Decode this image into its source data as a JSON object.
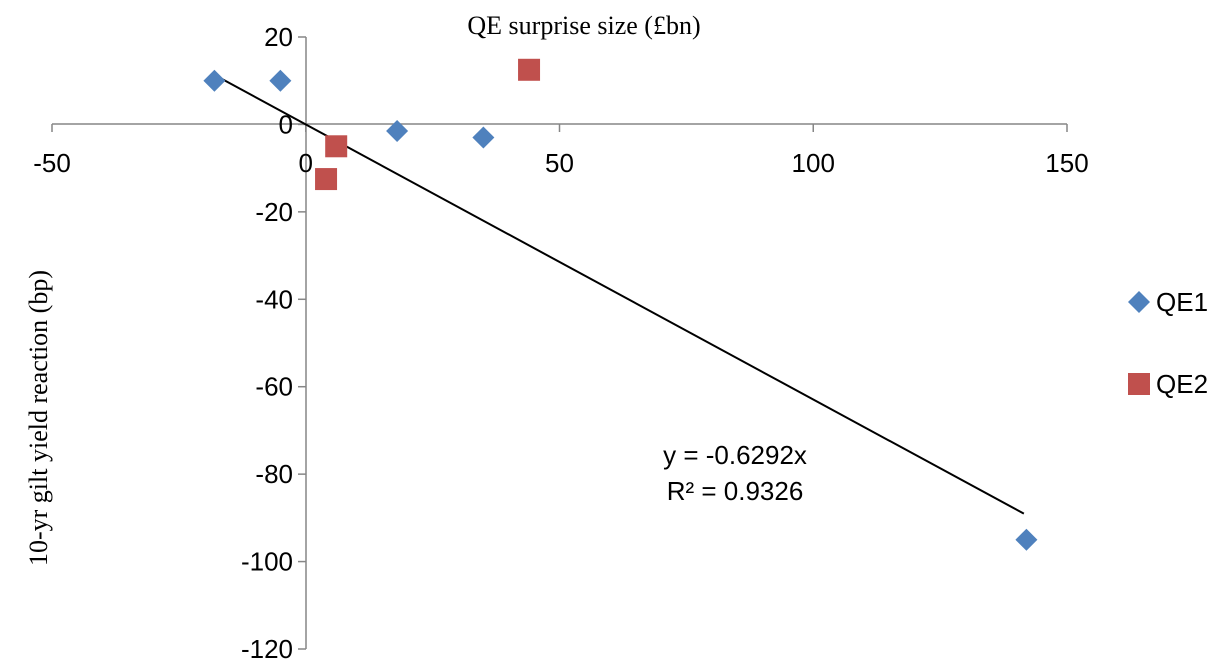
{
  "chart_data": {
    "type": "scatter",
    "title": "QE surprise size (£bn)",
    "xlabel": "",
    "ylabel": "10-yr gilt yield reaction (bp)",
    "xlim": [
      -50,
      150
    ],
    "ylim": [
      -120,
      20
    ],
    "xticks": [
      -50,
      0,
      50,
      100,
      150
    ],
    "yticks": [
      20,
      0,
      -20,
      -40,
      -60,
      -80,
      -100,
      -120
    ],
    "grid": false,
    "legend": "right",
    "series": [
      {
        "name": "QE1",
        "marker": "diamond",
        "color": "#4F81BD",
        "points": [
          {
            "x": -18,
            "y": 10
          },
          {
            "x": -5,
            "y": 10
          },
          {
            "x": 18,
            "y": -1.5
          },
          {
            "x": 35,
            "y": -3
          },
          {
            "x": 142,
            "y": -95
          }
        ]
      },
      {
        "name": "QE2",
        "marker": "square",
        "color": "#C0504D",
        "points": [
          {
            "x": 6,
            "y": -5
          },
          {
            "x": 4,
            "y": -12.5
          },
          {
            "x": 44,
            "y": 12.5
          }
        ]
      }
    ],
    "trendline": {
      "slope": -0.6292,
      "x_from": -18,
      "x_to": 141.5,
      "color": "#000000",
      "equation": "y = -0.6292x",
      "r_squared": "R² = 0.9326"
    }
  }
}
